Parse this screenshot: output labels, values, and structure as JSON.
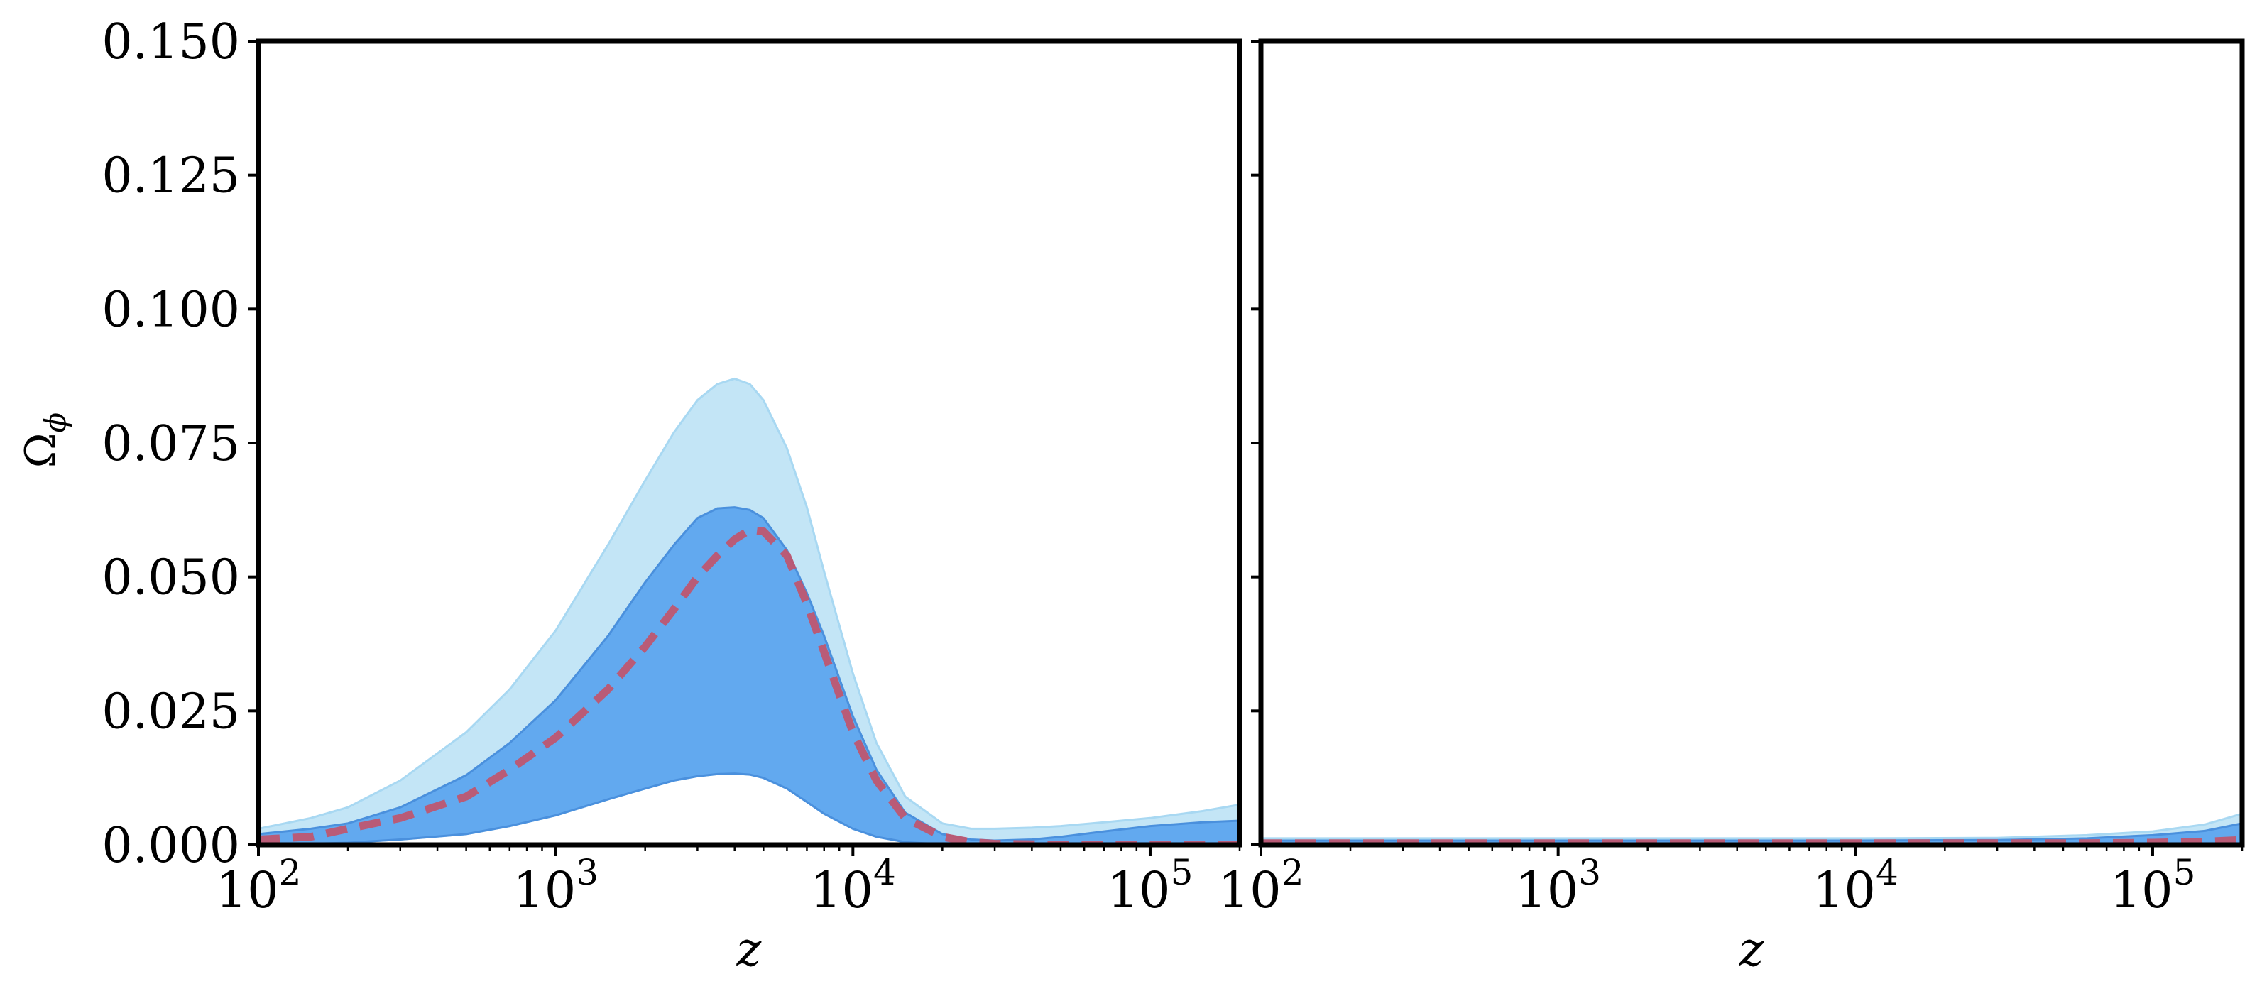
{
  "chart_data": {
    "type": "area",
    "shared_y": {
      "label_main": "Ω",
      "label_sub": "ϕ",
      "ylim": [
        0,
        0.15
      ],
      "ticks": [
        0,
        0.025,
        0.05,
        0.075,
        0.1,
        0.125,
        0.15
      ],
      "tick_labels": [
        "0.000",
        "0.025",
        "0.050",
        "0.075",
        "0.100",
        "0.125",
        "0.150"
      ]
    },
    "colors": {
      "band_outer": "#c3e5f6",
      "band_outer_edge": "#a8d8f2",
      "band_inner": "#62a9ef",
      "band_inner_edge": "#4a90dd",
      "best_fit": "#c0556d"
    },
    "x_axis": {
      "label": "z",
      "scale": "log",
      "tick_values": [
        100,
        1000,
        10000,
        100000
      ],
      "tick_base": "10",
      "tick_exponents": [
        "2",
        "3",
        "4",
        "5"
      ]
    },
    "panels": [
      {
        "xlim": [
          100,
          200000
        ],
        "x": [
          100,
          150,
          200,
          300,
          500,
          700,
          1000,
          1500,
          2000,
          2500,
          3000,
          3500,
          4000,
          4500,
          5000,
          6000,
          7000,
          8000,
          10000,
          12000,
          15000,
          20000,
          25000,
          30000,
          40000,
          50000,
          70000,
          100000,
          150000,
          200000
        ],
        "outer_upper": [
          0.003,
          0.005,
          0.007,
          0.012,
          0.021,
          0.029,
          0.04,
          0.056,
          0.068,
          0.077,
          0.083,
          0.086,
          0.087,
          0.086,
          0.083,
          0.074,
          0.063,
          0.051,
          0.032,
          0.019,
          0.009,
          0.004,
          0.003,
          0.003,
          0.0032,
          0.0035,
          0.0042,
          0.005,
          0.0063,
          0.0075
        ],
        "outer_lower": [
          0,
          0.0002,
          0.0004,
          0.001,
          0.002,
          0.0035,
          0.0055,
          0.0085,
          0.0105,
          0.012,
          0.0128,
          0.0132,
          0.0133,
          0.0131,
          0.0125,
          0.0105,
          0.008,
          0.0058,
          0.003,
          0.0015,
          0.0005,
          0.0001,
          0,
          0,
          0,
          0,
          0,
          0,
          0,
          0
        ],
        "inner_upper": [
          0.002,
          0.003,
          0.004,
          0.007,
          0.013,
          0.019,
          0.027,
          0.039,
          0.049,
          0.056,
          0.061,
          0.0628,
          0.063,
          0.0625,
          0.061,
          0.055,
          0.047,
          0.039,
          0.024,
          0.014,
          0.006,
          0.002,
          0.001,
          0.0008,
          0.001,
          0.0015,
          0.0025,
          0.0035,
          0.0042,
          0.0045
        ],
        "inner_lower": [
          0,
          0.0002,
          0.0004,
          0.001,
          0.002,
          0.0035,
          0.0055,
          0.0085,
          0.0105,
          0.012,
          0.0128,
          0.0132,
          0.0133,
          0.0131,
          0.0125,
          0.0105,
          0.008,
          0.0058,
          0.003,
          0.0015,
          0.0005,
          0.0001,
          0,
          0,
          0,
          0,
          0,
          0,
          0,
          0
        ],
        "best_fit": [
          0.001,
          0.0015,
          0.003,
          0.005,
          0.009,
          0.014,
          0.02,
          0.029,
          0.037,
          0.044,
          0.05,
          0.054,
          0.057,
          0.0588,
          0.0585,
          0.054,
          0.045,
          0.036,
          0.021,
          0.012,
          0.005,
          0.0015,
          0.0005,
          0.0002,
          0.0001,
          0,
          0,
          0,
          0,
          0
        ]
      },
      {
        "xlim": [
          100,
          200000
        ],
        "x": [
          100,
          1000,
          10000,
          30000,
          60000,
          100000,
          150000,
          200000
        ],
        "outer_upper": [
          0.0012,
          0.0012,
          0.0012,
          0.0013,
          0.0018,
          0.0025,
          0.0038,
          0.0058
        ],
        "outer_lower": [
          0,
          0,
          0,
          0,
          0,
          0,
          0,
          0
        ],
        "inner_upper": [
          0.0008,
          0.0008,
          0.0008,
          0.0009,
          0.0012,
          0.0018,
          0.0026,
          0.004
        ],
        "inner_lower": [
          0,
          0,
          0,
          0,
          0,
          0,
          0,
          0
        ],
        "best_fit": [
          0.0003,
          0.0003,
          0.0003,
          0.0003,
          0.0003,
          0.0004,
          0.0006,
          0.0009
        ]
      }
    ]
  }
}
